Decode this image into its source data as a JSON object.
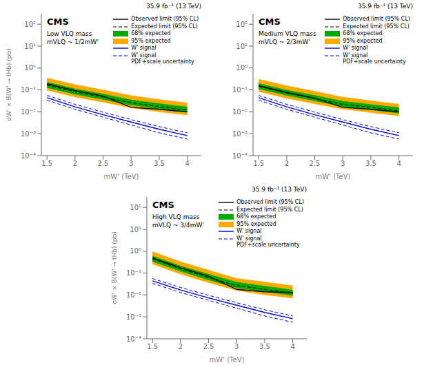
{
  "chart_data": [
    {
      "type": "line",
      "log": "y",
      "legend": "upper right",
      "x_label": "mW' (TeV)",
      "y_label": "σW' × B(W' → tHb) (pb)",
      "annotations": [
        "35.9 fb⁻¹ (13 TeV)",
        "CMS",
        "Low VLQ mass",
        "mVLQ ~ 1/2mW'"
      ],
      "xlim": [
        1.4,
        4.25
      ],
      "xticks": [
        1.5,
        2,
        2.5,
        3,
        3.5,
        4
      ],
      "ylim": [
        0.0001,
        300
      ],
      "yticks": [
        {
          "value": 0.0001,
          "label": "10⁻⁴"
        },
        {
          "value": 0.001,
          "label": "10⁻³"
        },
        {
          "value": 0.01,
          "label": "10⁻²"
        },
        {
          "value": 0.1,
          "label": "10⁻¹"
        },
        {
          "value": 1,
          "label": "10⁰"
        },
        {
          "value": 10,
          "label": "10¹"
        },
        {
          "value": 100,
          "label": "10²"
        }
      ],
      "x": [
        1.5,
        2.0,
        2.5,
        3.0,
        3.5,
        4.0
      ],
      "series": [
        {
          "name": "Observed limit (95% CL)",
          "type": "line",
          "color": "#000000",
          "line_style": "solid",
          "values": [
            0.19,
            0.093,
            0.052,
            0.016,
            0.013,
            0.01
          ]
        },
        {
          "name": "Expected limit (95% CL)",
          "type": "line",
          "color": "#000000",
          "line_style": "dashed",
          "values": [
            0.165,
            0.082,
            0.047,
            0.026,
            0.017,
            0.012
          ]
        },
        {
          "name": "68% expected",
          "type": "area",
          "color": "#00aa00",
          "lower": [
            0.125,
            0.062,
            0.036,
            0.02,
            0.013,
            0.0092
          ],
          "upper": [
            0.23,
            0.115,
            0.066,
            0.036,
            0.024,
            0.017
          ]
        },
        {
          "name": "95% expected",
          "type": "area",
          "color": "#ffaa00",
          "lower": [
            0.095,
            0.047,
            0.027,
            0.015,
            0.0098,
            0.007
          ],
          "upper": [
            0.36,
            0.178,
            0.102,
            0.056,
            0.037,
            0.026
          ]
        },
        {
          "name": "W' signal",
          "type": "line",
          "color": "#0000cc",
          "line_style": "solid",
          "values": [
            0.044,
            0.017,
            0.0074,
            0.0034,
            0.0016,
            0.00082
          ]
        },
        {
          "name": "W' signal\nPDF+scale uncertainty",
          "type": "line",
          "color": "#0000cc",
          "line_style": "dashed",
          "lower": [
            0.034,
            0.013,
            0.0057,
            0.0025,
            0.0011,
            0.00057
          ],
          "upper": [
            0.056,
            0.022,
            0.0096,
            0.0044,
            0.0021,
            0.0011
          ]
        }
      ]
    },
    {
      "type": "line",
      "log": "y",
      "legend": "upper right",
      "x_label": "mW' (TeV)",
      "annotations": [
        "35.9 fb⁻¹ (13 TeV)",
        "CMS",
        "Medium VLQ mass",
        "mVLQ ~ 2/3mW'"
      ],
      "xlim": [
        1.4,
        4.25
      ],
      "xticks": [
        1.5,
        2,
        2.5,
        3,
        3.5,
        4
      ],
      "ylim": [
        0.0001,
        300
      ],
      "yticks": [
        {
          "value": 0.0001,
          "label": "10⁻⁴"
        },
        {
          "value": 0.001,
          "label": "10⁻³"
        },
        {
          "value": 0.01,
          "label": "10⁻²"
        },
        {
          "value": 0.1,
          "label": "10⁻¹"
        },
        {
          "value": 1,
          "label": "10⁰"
        },
        {
          "value": 10,
          "label": "10¹"
        },
        {
          "value": 100,
          "label": "10²"
        }
      ],
      "x": [
        1.5,
        2.0,
        2.5,
        3.0,
        3.5,
        4.0
      ],
      "series": [
        {
          "name": "Observed limit (95% CL)",
          "type": "line",
          "color": "#000000",
          "line_style": "solid",
          "values": [
            0.155,
            0.077,
            0.042,
            0.016,
            0.013,
            0.01
          ]
        },
        {
          "name": "Expected limit (95% CL)",
          "type": "line",
          "color": "#000000",
          "line_style": "dashed",
          "values": [
            0.145,
            0.072,
            0.04,
            0.022,
            0.016,
            0.011
          ]
        },
        {
          "name": "68% expected",
          "type": "area",
          "color": "#00aa00",
          "lower": [
            0.11,
            0.055,
            0.031,
            0.017,
            0.012,
            0.0085
          ],
          "upper": [
            0.202,
            0.101,
            0.057,
            0.031,
            0.022,
            0.016
          ]
        },
        {
          "name": "95% expected",
          "type": "area",
          "color": "#ffaa00",
          "lower": [
            0.083,
            0.041,
            0.023,
            0.013,
            0.009,
            0.0064
          ],
          "upper": [
            0.315,
            0.157,
            0.088,
            0.048,
            0.033,
            0.023
          ]
        },
        {
          "name": "W' signal",
          "type": "line",
          "color": "#0000cc",
          "line_style": "solid",
          "values": [
            0.044,
            0.017,
            0.0074,
            0.0034,
            0.0016,
            0.00082
          ]
        },
        {
          "name": "W' signal\nPDF+scale uncertainty",
          "type": "line",
          "color": "#0000cc",
          "line_style": "dashed",
          "lower": [
            0.034,
            0.013,
            0.0057,
            0.0025,
            0.0011,
            0.00057
          ],
          "upper": [
            0.056,
            0.022,
            0.0096,
            0.0044,
            0.0021,
            0.0011
          ]
        }
      ]
    },
    {
      "type": "line",
      "log": "y",
      "legend": "upper right",
      "x_label": "mW' (TeV)",
      "y_label": "σW' × B(W' → tHb) (pb)",
      "annotations": [
        "35.9 fb⁻¹ (13 TeV)",
        "CMS",
        "High VLQ mass",
        "mVLQ ~ 3/4mW'"
      ],
      "xlim": [
        1.4,
        4.25
      ],
      "xticks": [
        1.5,
        2,
        2.5,
        3,
        3.5,
        4
      ],
      "ylim": [
        0.0001,
        300
      ],
      "yticks": [
        {
          "value": 0.0001,
          "label": "10⁻⁴"
        },
        {
          "value": 0.001,
          "label": "10⁻³"
        },
        {
          "value": 0.01,
          "label": "10⁻²"
        },
        {
          "value": 0.1,
          "label": "10⁻¹"
        },
        {
          "value": 1,
          "label": "10⁰"
        },
        {
          "value": 10,
          "label": "10¹"
        },
        {
          "value": 100,
          "label": "10²"
        }
      ],
      "x": [
        1.5,
        2.0,
        2.5,
        3.0,
        3.5,
        4.0
      ],
      "series": [
        {
          "name": "Observed limit (95% CL)",
          "type": "line",
          "color": "#000000",
          "line_style": "solid",
          "values": [
            0.49,
            0.175,
            0.072,
            0.018,
            0.014,
            0.013
          ]
        },
        {
          "name": "Expected limit (95% CL)",
          "type": "line",
          "color": "#000000",
          "line_style": "dashed",
          "values": [
            0.44,
            0.155,
            0.063,
            0.027,
            0.018,
            0.012
          ]
        },
        {
          "name": "68% expected",
          "type": "area",
          "color": "#00aa00",
          "lower": [
            0.335,
            0.118,
            0.048,
            0.021,
            0.014,
            0.0092
          ],
          "upper": [
            0.615,
            0.215,
            0.09,
            0.039,
            0.026,
            0.017
          ]
        },
        {
          "name": "95% expected",
          "type": "area",
          "color": "#ffaa00",
          "lower": [
            0.252,
            0.089,
            0.036,
            0.016,
            0.01,
            0.007
          ],
          "upper": [
            0.98,
            0.338,
            0.14,
            0.059,
            0.04,
            0.027
          ]
        },
        {
          "name": "W' signal",
          "type": "line",
          "color": "#0000cc",
          "line_style": "solid",
          "values": [
            0.044,
            0.017,
            0.0074,
            0.0034,
            0.0016,
            0.00082
          ]
        },
        {
          "name": "W' signal\nPDF+scale uncertainty",
          "type": "line",
          "color": "#0000cc",
          "line_style": "dashed",
          "lower": [
            0.034,
            0.013,
            0.0057,
            0.0025,
            0.0011,
            0.00057
          ],
          "upper": [
            0.056,
            0.022,
            0.0096,
            0.0044,
            0.0021,
            0.0011
          ]
        }
      ]
    }
  ]
}
